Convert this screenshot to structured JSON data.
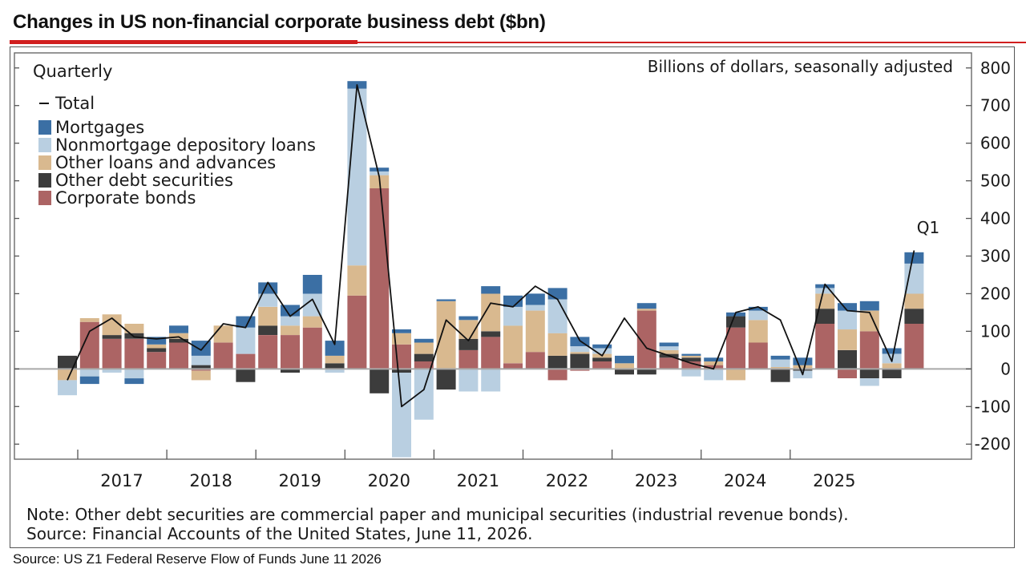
{
  "header": {
    "title": "Changes in US non-financial corporate business debt ($bn)"
  },
  "footer": {
    "source": "Source:  US Z1 Federal Reserve Flow of Funds June 11 2026"
  },
  "colors": {
    "accent_red": "#d11f1f",
    "mortgages": "#3b6fa4",
    "nonmortgage": "#b9cfe1",
    "other_loans": "#d9b98f",
    "other_debt": "#3c3c3c",
    "corporate_bonds": "#ac6464",
    "total_line": "#111111"
  },
  "chart_data": {
    "type": "bar",
    "stacked": true,
    "frequency_label": "Quarterly",
    "units_label": "Billions of dollars, seasonally adjusted",
    "annotation": "Q1",
    "note": "Note: Other debt securities are commercial paper and municipal securities (industrial revenue bonds).",
    "source": "Source: Financial Accounts of the United States, June 11, 2026.",
    "ylim": [
      -240,
      840
    ],
    "yticks": [
      -200,
      -100,
      0,
      100,
      200,
      300,
      400,
      500,
      600,
      700,
      800
    ],
    "axis_position": "right",
    "grid": false,
    "legend_position": "top-left",
    "x_tick_labels": [
      "2017",
      "2018",
      "2019",
      "2020",
      "2021",
      "2022",
      "2023",
      "2024",
      "2025"
    ],
    "categories": [
      "2016 Q2",
      "2016 Q3",
      "2016 Q4",
      "2017 Q1",
      "2017 Q2",
      "2017 Q3",
      "2017 Q4",
      "2018 Q1",
      "2018 Q2",
      "2018 Q3",
      "2018 Q4",
      "2019 Q1",
      "2019 Q2",
      "2019 Q3",
      "2019 Q4",
      "2020 Q1",
      "2020 Q2",
      "2020 Q3",
      "2020 Q4",
      "2021 Q1",
      "2021 Q2",
      "2021 Q3",
      "2021 Q4",
      "2022 Q1",
      "2022 Q2",
      "2022 Q3",
      "2022 Q4",
      "2023 Q1",
      "2023 Q2",
      "2023 Q3",
      "2023 Q4",
      "2024 Q1",
      "2024 Q2",
      "2024 Q3",
      "2024 Q4",
      "2025 Q1",
      "2025 Q2",
      "2025 Q3",
      "2025 Q4",
      "2026 Q1"
    ],
    "series": [
      {
        "name": "Corporate bonds",
        "key": "corporate_bonds",
        "colorKey": "corporate_bonds",
        "values": [
          0,
          125,
          80,
          80,
          45,
          70,
          -5,
          70,
          40,
          90,
          90,
          110,
          0,
          195,
          480,
          65,
          20,
          0,
          50,
          85,
          15,
          45,
          -30,
          -5,
          20,
          0,
          155,
          30,
          20,
          10,
          110,
          70,
          0,
          0,
          120,
          -25,
          100,
          0,
          120,
          0
        ]
      },
      {
        "name": "Other debt securities",
        "key": "other_debt",
        "colorKey": "other_debt",
        "values": [
          35,
          0,
          10,
          15,
          10,
          10,
          10,
          0,
          -35,
          25,
          -10,
          0,
          15,
          0,
          -65,
          -10,
          20,
          -55,
          30,
          15,
          0,
          0,
          35,
          40,
          10,
          -15,
          -15,
          10,
          10,
          0,
          30,
          0,
          -35,
          -5,
          40,
          50,
          -25,
          -25,
          40,
          0
        ]
      },
      {
        "name": "Other loans and advances",
        "key": "other_loans",
        "colorKey": "other_loans",
        "values": [
          -30,
          10,
          55,
          25,
          10,
          15,
          -25,
          45,
          0,
          50,
          25,
          30,
          20,
          80,
          35,
          30,
          30,
          180,
          50,
          100,
          100,
          110,
          60,
          5,
          10,
          15,
          5,
          10,
          5,
          10,
          -30,
          60,
          5,
          10,
          40,
          55,
          55,
          15,
          40,
          0
        ]
      },
      {
        "name": "Nonmortgage depository loans",
        "key": "nonmortgage",
        "colorKey": "nonmortgage",
        "values": [
          -40,
          -20,
          -10,
          -25,
          0,
          0,
          25,
          0,
          70,
          35,
          25,
          60,
          -10,
          470,
          10,
          -225,
          -135,
          0,
          -60,
          -60,
          50,
          15,
          90,
          15,
          15,
          0,
          0,
          10,
          -20,
          -30,
          0,
          25,
          20,
          -20,
          15,
          50,
          -20,
          25,
          80,
          0
        ]
      },
      {
        "name": "Mortgages",
        "key": "mortgages",
        "colorKey": "mortgages",
        "values": [
          0,
          -20,
          0,
          -15,
          20,
          20,
          40,
          0,
          30,
          30,
          30,
          50,
          40,
          20,
          10,
          10,
          10,
          5,
          10,
          20,
          30,
          30,
          30,
          25,
          10,
          20,
          15,
          10,
          5,
          10,
          10,
          10,
          10,
          20,
          10,
          20,
          25,
          15,
          30,
          0
        ]
      },
      {
        "name": "Total",
        "key": "total",
        "type": "line",
        "colorKey": "total_line",
        "values": [
          -30,
          100,
          135,
          85,
          80,
          85,
          50,
          120,
          110,
          230,
          140,
          185,
          65,
          755,
          510,
          -100,
          -55,
          130,
          75,
          175,
          165,
          220,
          185,
          75,
          35,
          135,
          55,
          35,
          15,
          0,
          150,
          165,
          130,
          -15,
          225,
          155,
          150,
          20,
          315,
          0
        ]
      }
    ]
  }
}
